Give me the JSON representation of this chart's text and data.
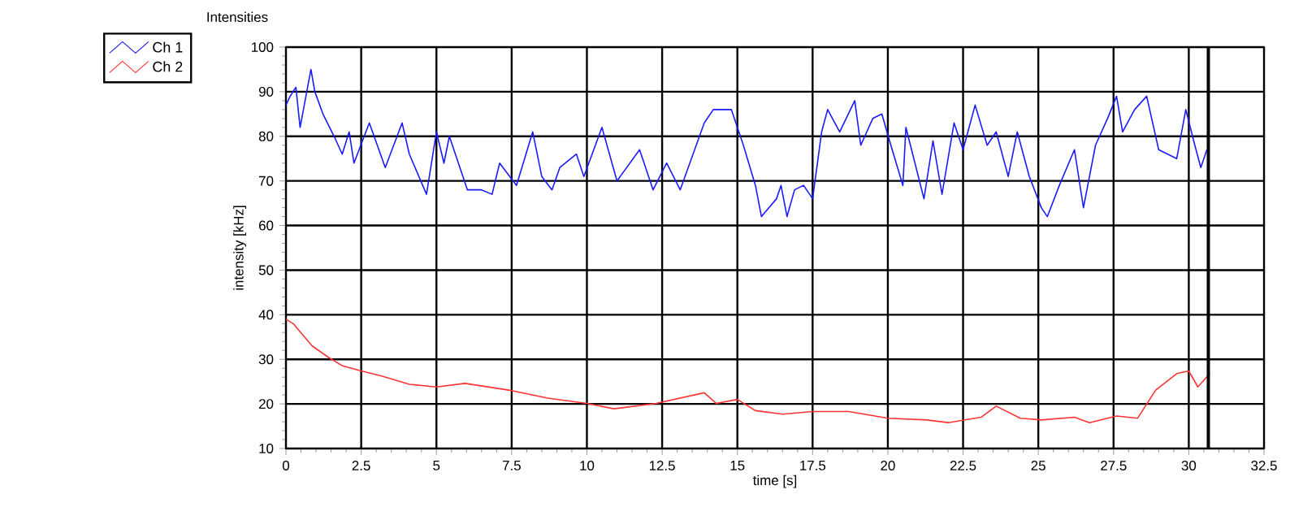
{
  "chart_data": {
    "type": "line",
    "title": "Intensities",
    "xlabel": "time [s]",
    "ylabel": "intensity [kHz]",
    "xlim": [
      0,
      32.5
    ],
    "ylim": [
      10,
      100
    ],
    "xticks": [
      0,
      2.5,
      5,
      7.5,
      10,
      12.5,
      15,
      17.5,
      20,
      22.5,
      25,
      27.5,
      30,
      32.5
    ],
    "yticks": [
      10,
      20,
      30,
      40,
      50,
      60,
      70,
      80,
      90,
      100
    ],
    "grid": true,
    "legend": "top left",
    "marker": "none",
    "line_style": "solid",
    "ref_lines": [
      {
        "axis": "x",
        "value": 30.65,
        "color": "#000000"
      }
    ],
    "series": [
      {
        "name": "Ch 1",
        "color": "#1a1aff",
        "x": [
          0,
          0.14,
          0.33,
          0.47,
          0.83,
          0.96,
          1.23,
          1.6,
          1.87,
          2.1,
          2.26,
          2.77,
          3.3,
          3.86,
          4.1,
          4.67,
          5.0,
          5.25,
          5.43,
          6.03,
          6.5,
          6.85,
          7.1,
          7.66,
          8.2,
          8.5,
          8.84,
          9.1,
          9.65,
          9.9,
          10.5,
          11.0,
          11.75,
          12.2,
          12.65,
          13.1,
          13.9,
          14.2,
          14.8,
          15.2,
          15.6,
          15.8,
          16.3,
          16.45,
          16.65,
          16.9,
          17.2,
          17.5,
          17.8,
          18.0,
          18.4,
          18.9,
          19.1,
          19.5,
          19.8,
          20.1,
          20.5,
          20.6,
          21.2,
          21.5,
          21.8,
          22.2,
          22.5,
          22.9,
          23.3,
          23.6,
          24.0,
          24.3,
          24.7,
          25.1,
          25.3,
          25.7,
          26.2,
          26.5,
          26.9,
          27.3,
          27.6,
          27.8,
          28.2,
          28.6,
          29.0,
          29.6,
          29.9,
          30.2,
          30.4,
          30.6
        ],
        "values": [
          87,
          89,
          91,
          82,
          95,
          90,
          85,
          80,
          76,
          81,
          74,
          83,
          73,
          83,
          76,
          67,
          81,
          74,
          80,
          68,
          68,
          67,
          74,
          69,
          81,
          71,
          68,
          73,
          76,
          71,
          82,
          70,
          77,
          68,
          74,
          68,
          83,
          86,
          86,
          78,
          69,
          62,
          66,
          69,
          62,
          68,
          69,
          66,
          81,
          86,
          81,
          88,
          78,
          84,
          85,
          78,
          69,
          82,
          66,
          79,
          67,
          83,
          77,
          87,
          78,
          81,
          71,
          81,
          71,
          64,
          62,
          69,
          77,
          64,
          78,
          84,
          89,
          81,
          86,
          89,
          77,
          75,
          86,
          78,
          73,
          77
        ]
      },
      {
        "name": "Ch 2",
        "color": "#ff3333",
        "x": [
          0,
          0.24,
          0.87,
          1.4,
          1.86,
          2.5,
          3.2,
          4.1,
          5.0,
          5.95,
          7.4,
          8.7,
          10.0,
          10.9,
          12.3,
          13.9,
          14.3,
          15.0,
          15.6,
          16.5,
          17.5,
          18.7,
          20.0,
          21.3,
          22.0,
          23.1,
          23.6,
          24.4,
          25.1,
          26.2,
          26.7,
          27.6,
          28.3,
          28.9,
          29.6,
          30.0,
          30.3,
          30.7
        ],
        "values": [
          39,
          38,
          33,
          30.5,
          28.6,
          27.4,
          26.2,
          24.4,
          23.8,
          24.6,
          23.1,
          21.3,
          20.1,
          18.9,
          20.1,
          22.5,
          20.1,
          21,
          18.5,
          17.7,
          18.3,
          18.3,
          16.8,
          16.4,
          15.8,
          17,
          19.5,
          16.8,
          16.4,
          17,
          15.8,
          17.3,
          16.8,
          23.1,
          26.8,
          27.4,
          23.8,
          26.8
        ]
      }
    ]
  }
}
